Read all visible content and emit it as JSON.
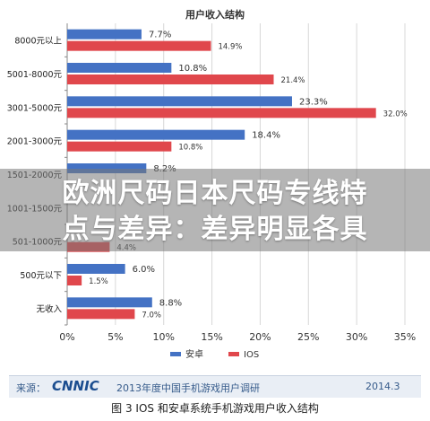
{
  "chart_data": {
    "type": "bar",
    "orientation": "horizontal",
    "title": "用户收入结构",
    "categories": [
      "8000元以上",
      "5001-8000元",
      "3001-5000元",
      "2001-3000元",
      "1501-2000元",
      "1001-1500元",
      "501-1000元",
      "500元以下",
      "无收入"
    ],
    "series": [
      {
        "name": "安卓",
        "color": "#4472c4",
        "values": [
          7.7,
          10.8,
          23.3,
          18.4,
          8.2,
          null,
          null,
          6.0,
          8.8
        ],
        "labels": [
          "7.7%",
          "10.8%",
          "23.3%",
          "18.4%",
          "8.2%",
          "",
          "",
          "6.0%",
          "8.8%"
        ]
      },
      {
        "name": "IOS",
        "color": "#e0474c",
        "values": [
          14.9,
          21.4,
          32.0,
          10.8,
          null,
          null,
          4.4,
          1.5,
          7.0
        ],
        "labels": [
          "14.9%",
          "21.4%",
          "32.0%",
          "10.8%",
          "",
          "",
          "4.4%",
          "1.5%",
          "7.0%"
        ]
      }
    ],
    "xlim": [
      0,
      35
    ],
    "xticks": [
      "0%",
      "5%",
      "10%",
      "15%",
      "20%",
      "25%",
      "30%",
      "35%"
    ],
    "legend_position": "bottom",
    "grid": true
  },
  "footer": {
    "source_label": "来源：",
    "logo_text": "CNNIC",
    "survey": "2013年度中国手机游戏用户调研",
    "date": "2014.3"
  },
  "caption": "图 3 IOS 和安卓系统手机游戏用户收入结构",
  "overlay": {
    "line1": "欧洲尺码日本尺码专线特",
    "line2": "点与差异：差异明显各具"
  }
}
